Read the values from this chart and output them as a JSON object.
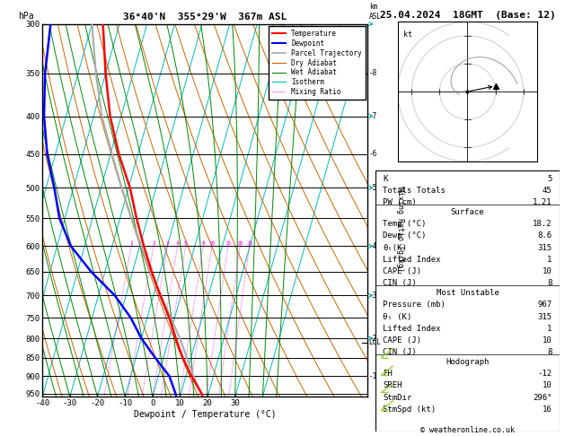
{
  "title_left": "36°40'N  355°29'W  367m ASL",
  "title_right": "25.04.2024  18GMT  (Base: 12)",
  "xlabel": "Dewpoint / Temperature (°C)",
  "pressure_levels": [
    300,
    350,
    400,
    450,
    500,
    550,
    600,
    650,
    700,
    750,
    800,
    850,
    900,
    950
  ],
  "p_min": 300,
  "p_max": 960,
  "temperature_profile": {
    "pressure": [
      960,
      950,
      900,
      850,
      800,
      750,
      700,
      650,
      600,
      550,
      500,
      450,
      400,
      350,
      300
    ],
    "temp": [
      18.2,
      17.5,
      12.0,
      7.0,
      2.5,
      -2.0,
      -7.5,
      -13.0,
      -18.5,
      -24.0,
      -29.5,
      -37.0,
      -44.0,
      -50.0,
      -56.0
    ]
  },
  "dewpoint_profile": {
    "pressure": [
      960,
      950,
      900,
      850,
      800,
      750,
      700,
      650,
      600,
      550,
      500,
      450,
      400,
      350,
      300
    ],
    "temp": [
      8.6,
      8.0,
      4.0,
      -3.0,
      -10.0,
      -16.0,
      -24.0,
      -35.0,
      -45.0,
      -52.0,
      -57.0,
      -63.0,
      -68.0,
      -72.0,
      -75.0
    ]
  },
  "parcel_profile": {
    "pressure": [
      960,
      900,
      850,
      800,
      750,
      700,
      650,
      600,
      550,
      500,
      450,
      400,
      350,
      300
    ],
    "temp": [
      18.2,
      12.8,
      8.5,
      4.0,
      -1.5,
      -7.2,
      -13.5,
      -19.5,
      -25.8,
      -32.5,
      -39.5,
      -47.0,
      -53.5,
      -60.0
    ]
  },
  "lcl_pressure": 810,
  "mixing_ratio_lines": [
    1,
    2,
    3,
    4,
    5,
    8,
    10,
    15,
    20,
    25
  ],
  "km_labels": {
    "900": "1",
    "800": "2",
    "700": "3",
    "600": "4",
    "500": "5",
    "450": "6",
    "400": "7",
    "350": "8"
  },
  "info_panel": {
    "K": 5,
    "Totals_Totals": 45,
    "PW_cm": "1.21",
    "surface_temp": "18.2",
    "surface_dewp": "8.6",
    "surface_theta_e": 315,
    "surface_lifted_index": 1,
    "surface_CAPE": 10,
    "surface_CIN": 8,
    "MU_pressure": 967,
    "MU_theta_e": 315,
    "MU_lifted_index": 1,
    "MU_CAPE": 10,
    "MU_CIN": 8,
    "EH": -12,
    "SREH": 10,
    "StmDir": 296,
    "StmSpd": 16
  },
  "colors": {
    "temperature": "#ff0000",
    "dewpoint": "#0000ff",
    "parcel": "#aaaaaa",
    "dry_adiabat": "#cc6600",
    "wet_adiabat": "#008800",
    "isotherm": "#00bbbb",
    "mixing_ratio": "#ff00ff",
    "background": "#ffffff"
  },
  "SKEW": 38
}
